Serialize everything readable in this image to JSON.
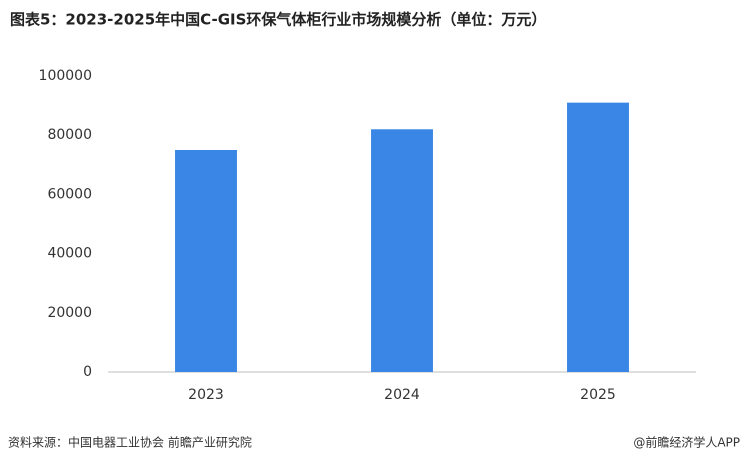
{
  "chart_data": {
    "type": "bar",
    "title": "图表5：2023-2025年中国C-GIS环保气体柜行业市场规模分析（单位：万元）",
    "categories": [
      "2023",
      "2024",
      "2025"
    ],
    "values": [
      75000,
      82000,
      91000
    ],
    "color": "#3a86e6",
    "ylim": [
      0,
      100000
    ],
    "yticks": [
      0,
      20000,
      40000,
      60000,
      80000,
      100000
    ],
    "grid": false,
    "source": "资料来源：中国电器工业协会  前瞻产业研究院",
    "credit": "@前瞻经济学人APP"
  }
}
